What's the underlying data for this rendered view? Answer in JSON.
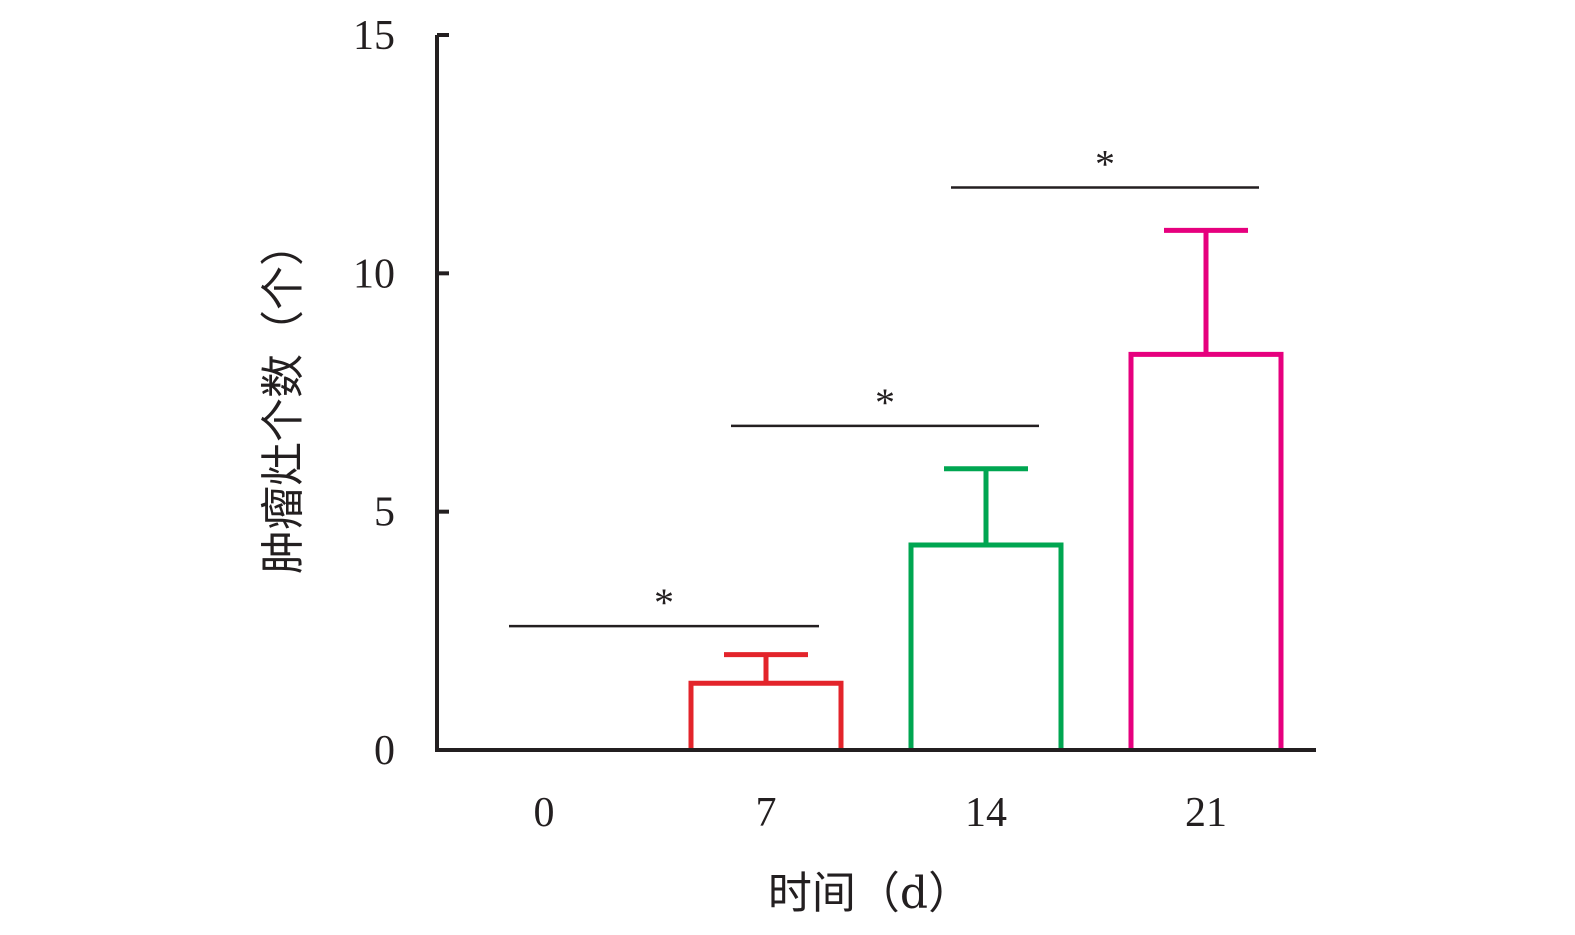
{
  "chart_data": {
    "type": "bar",
    "categories": [
      "0",
      "7",
      "14",
      "21"
    ],
    "values": [
      0,
      1.4,
      4.3,
      8.3
    ],
    "errors": [
      0,
      0.6,
      1.6,
      2.6
    ],
    "colors": [
      "#e3242b",
      "#e3242b",
      "#00a651",
      "#e6007e"
    ],
    "xlabel": "时间（d）",
    "ylabel": "肿瘤灶个数（个）",
    "ylim": [
      0,
      15
    ],
    "yticks": [
      0,
      5,
      10,
      15
    ],
    "grid": false,
    "significance": [
      {
        "from": "0",
        "to": "7",
        "y": 2.6,
        "label": "*"
      },
      {
        "from": "7",
        "to": "14",
        "y": 6.8,
        "label": "*"
      },
      {
        "from": "14",
        "to": "21",
        "y": 11.8,
        "label": "*"
      }
    ]
  }
}
